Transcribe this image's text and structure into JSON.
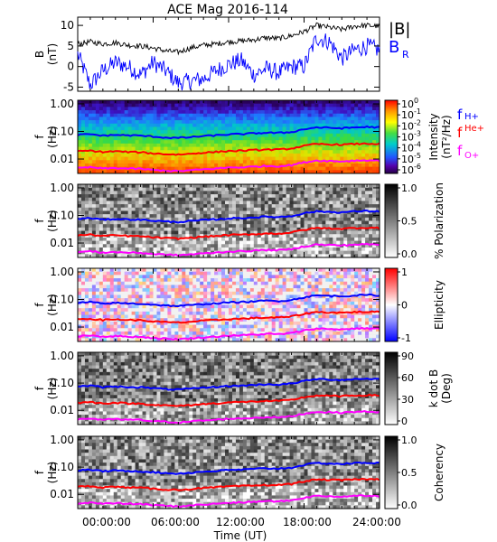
{
  "title": "ACE Mag 2016-114",
  "time_axis": {
    "label": "Time (UT)",
    "ticks": [
      "00:00:00",
      "06:00:00",
      "12:00:00",
      "18:00:00",
      "24:00:00"
    ],
    "range_hours": [
      0,
      24
    ]
  },
  "colors": {
    "B_total": "#000000",
    "B_R": "#0000ff",
    "fH": "#0000ff",
    "fHe": "#ff0000",
    "fO": "#ff00ff"
  },
  "chart_data": [
    {
      "type": "line",
      "panel": "B",
      "ylabel_top": "B",
      "ylabel_bottom": "(nT)",
      "ylim": [
        -6,
        12
      ],
      "yticks": [
        "10",
        "5",
        "0",
        "-5"
      ],
      "legend": [
        "|B|",
        "B"
      ],
      "legend_sub": [
        "",
        "R"
      ],
      "x_hours": [
        0,
        1,
        2,
        3,
        4,
        5,
        6,
        7,
        8,
        9,
        10,
        11,
        12,
        13,
        14,
        15,
        16,
        17,
        18,
        19,
        20,
        21,
        22,
        23,
        24
      ],
      "series": [
        {
          "name": "|B|",
          "values": [
            5.5,
            6,
            5.5,
            5.8,
            5.2,
            5,
            4.5,
            3.8,
            3.5,
            4.5,
            5.2,
            5.5,
            6,
            6.2,
            6.5,
            7,
            6.8,
            7.5,
            8.5,
            10,
            9.5,
            9,
            9.8,
            10,
            9.8
          ]
        },
        {
          "name": "B",
          "values": [
            3,
            -4.5,
            -1,
            1,
            0,
            -2,
            1,
            -1,
            -4,
            -3.5,
            -3,
            -1,
            0.5,
            1.5,
            -2,
            -0.5,
            -1.5,
            0,
            0,
            7,
            6,
            2,
            4,
            5,
            4
          ]
        }
      ]
    },
    {
      "type": "heatmap",
      "panel": "Intensity",
      "ylabel_top": "f",
      "ylabel_bottom": "(Hz)",
      "yticks": [
        "1.00",
        "0.10",
        "0.01"
      ],
      "colorbar_title": "Intensity",
      "colorbar_units": "(nT²/Hz)",
      "colorbar_ticks": [
        "10",
        "10",
        "10",
        "10",
        "10",
        "10",
        "10"
      ],
      "colorbar_exponents": [
        "0",
        "-1",
        "-2",
        "-3",
        "-4",
        "-5",
        "-6"
      ],
      "legend": [
        "f",
        "f",
        "f"
      ],
      "legend_sub": [
        "H+",
        "He+",
        "O+"
      ]
    },
    {
      "type": "heatmap",
      "panel": "Polarization",
      "ylabel_top": "f",
      "ylabel_bottom": "(Hz)",
      "yticks": [
        "1.00",
        "0.10",
        "0.01"
      ],
      "colorbar_title": "% Polarization",
      "colorbar_ticks": [
        "1.0",
        "0.5",
        "0.0"
      ]
    },
    {
      "type": "heatmap",
      "panel": "Ellipticity",
      "ylabel_top": "f",
      "ylabel_bottom": "(Hz)",
      "yticks": [
        "1.00",
        "0.10",
        "0.01"
      ],
      "colorbar_title": "Ellipticity",
      "colorbar_ticks": [
        "1",
        "0",
        "-1"
      ]
    },
    {
      "type": "heatmap",
      "panel": "kdotB",
      "ylabel_top": "f",
      "ylabel_bottom": "(Hz)",
      "yticks": [
        "1.00",
        "0.10",
        "0.01"
      ],
      "colorbar_title": "k dot B",
      "colorbar_units": "(Deg)",
      "colorbar_ticks": [
        "90",
        "60",
        "30",
        "0"
      ]
    },
    {
      "type": "heatmap",
      "panel": "Coherency",
      "ylabel_top": "f",
      "ylabel_bottom": "(Hz)",
      "yticks": [
        "1.00",
        "0.10",
        "0.01"
      ],
      "colorbar_title": "Coherency",
      "colorbar_ticks": [
        "1.0",
        "0.5",
        "0.0"
      ]
    }
  ],
  "gyrofrequency_lines": {
    "x_hours": [
      0,
      1,
      2,
      3,
      4,
      5,
      6,
      7,
      8,
      9,
      10,
      11,
      12,
      13,
      14,
      15,
      16,
      17,
      18,
      19,
      20,
      21,
      22,
      23,
      24
    ],
    "fH_hz": [
      0.075,
      0.08,
      0.07,
      0.075,
      0.072,
      0.07,
      0.065,
      0.06,
      0.058,
      0.062,
      0.068,
      0.072,
      0.078,
      0.08,
      0.085,
      0.09,
      0.088,
      0.095,
      0.12,
      0.14,
      0.135,
      0.13,
      0.14,
      0.145,
      0.14
    ],
    "fHe_hz": [
      0.019,
      0.02,
      0.018,
      0.019,
      0.018,
      0.0175,
      0.016,
      0.015,
      0.0145,
      0.0155,
      0.017,
      0.018,
      0.0195,
      0.02,
      0.021,
      0.022,
      0.022,
      0.024,
      0.03,
      0.035,
      0.034,
      0.033,
      0.035,
      0.036,
      0.035
    ],
    "fO_hz": [
      0.0047,
      0.005,
      0.0045,
      0.0047,
      0.0045,
      0.0044,
      0.004,
      0.0038,
      0.0036,
      0.0039,
      0.0042,
      0.0045,
      0.0049,
      0.005,
      0.0053,
      0.0056,
      0.0055,
      0.006,
      0.0075,
      0.0088,
      0.0085,
      0.0082,
      0.0088,
      0.009,
      0.0088
    ]
  }
}
